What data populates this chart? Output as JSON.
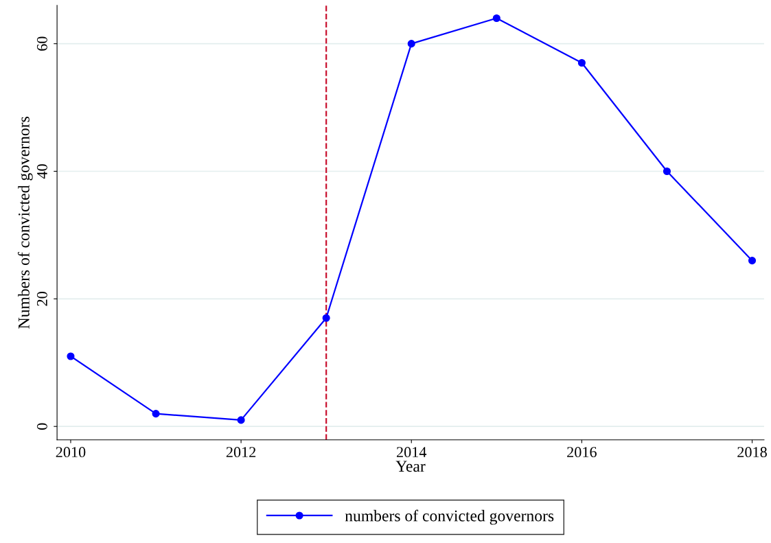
{
  "chart_data": {
    "type": "line",
    "xlabel": "Year",
    "ylabel": "Numbers of convicted governors",
    "x": [
      2010,
      2011,
      2012,
      2013,
      2014,
      2015,
      2016,
      2017,
      2018
    ],
    "series": [
      {
        "name": "numbers of convicted governors",
        "color": "#0000ff",
        "values": [
          11,
          2,
          1,
          17,
          60,
          64,
          57,
          40,
          26
        ]
      }
    ],
    "xlim": [
      2009.84,
      2018.14
    ],
    "ylim": [
      -2.1,
      66
    ],
    "xticks": [
      2010,
      2012,
      2014,
      2016,
      2018
    ],
    "yticks": [
      0,
      20,
      40,
      60
    ],
    "ref_lines": [
      {
        "axis": "x",
        "value": 2013,
        "color": "#c8102e",
        "line_style": "dashed"
      }
    ],
    "grid": "y",
    "legend": "bottom",
    "marker": "circle",
    "line_style": "solid"
  }
}
